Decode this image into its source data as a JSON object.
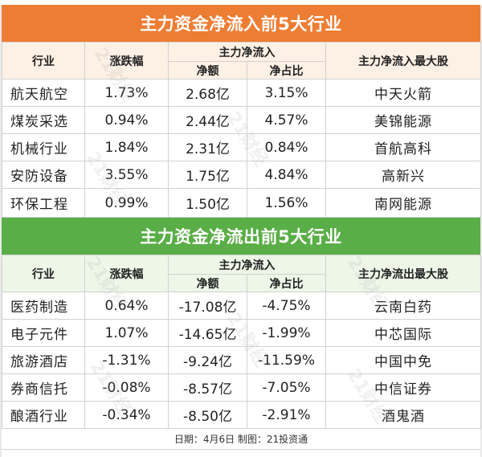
{
  "inflow": {
    "title": "主力资金净流入前5大行业",
    "headers": {
      "industry": "行业",
      "change": "涨跌幅",
      "main_flow": "主力净流入",
      "net_amount": "净额",
      "net_ratio": "净占比",
      "top_stock": "主力净流入最大股"
    },
    "rows": [
      {
        "industry": "航天航空",
        "change": "1.73%",
        "net_amount": "2.68亿",
        "net_ratio": "3.15%",
        "top_stock": "中天火箭"
      },
      {
        "industry": "煤炭采选",
        "change": "0.94%",
        "net_amount": "2.44亿",
        "net_ratio": "4.57%",
        "top_stock": "美锦能源"
      },
      {
        "industry": "机械行业",
        "change": "1.84%",
        "net_amount": "2.31亿",
        "net_ratio": "0.84%",
        "top_stock": "首航高科"
      },
      {
        "industry": "安防设备",
        "change": "3.55%",
        "net_amount": "1.75亿",
        "net_ratio": "4.84%",
        "top_stock": "高新兴"
      },
      {
        "industry": "环保工程",
        "change": "0.99%",
        "net_amount": "1.50亿",
        "net_ratio": "1.56%",
        "top_stock": "南网能源"
      }
    ]
  },
  "outflow": {
    "title": "主力资金净流出前5大行业",
    "headers": {
      "industry": "行业",
      "change": "涨跌幅",
      "main_flow": "主力净流入",
      "net_amount": "净额",
      "net_ratio": "净占比",
      "top_stock": "主力净流出最大股"
    },
    "rows": [
      {
        "industry": "医药制造",
        "change": "0.64%",
        "net_amount": "-17.08亿",
        "net_ratio": "-4.75%",
        "top_stock": "云南白药"
      },
      {
        "industry": "电子元件",
        "change": "1.07%",
        "net_amount": "-14.65亿",
        "net_ratio": "-1.99%",
        "top_stock": "中芯国际"
      },
      {
        "industry": "旅游酒店",
        "change": "-1.31%",
        "net_amount": "-9.24亿",
        "net_ratio": "-11.59%",
        "top_stock": "中国中免"
      },
      {
        "industry": "券商信托",
        "change": "-0.08%",
        "net_amount": "-8.57亿",
        "net_ratio": "-7.05%",
        "top_stock": "中信证券"
      },
      {
        "industry": "酿酒行业",
        "change": "-0.34%",
        "net_amount": "-8.50亿",
        "net_ratio": "-2.91%",
        "top_stock": "酒鬼酒"
      }
    ]
  },
  "footer": "日期：4月6日 制图：21投资通",
  "watermark": "21财经",
  "colors": {
    "orange": "#ee7d34",
    "green": "#5aae47",
    "orange_header_bg": "#fdf0e4",
    "green_header_bg": "#edf6e7"
  }
}
